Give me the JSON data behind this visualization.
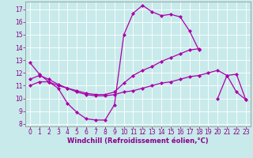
{
  "background_color": "#c8eaea",
  "grid_color": "#ffffff",
  "line_color": "#aa00aa",
  "marker": "D",
  "markersize": 2.0,
  "linewidth": 0.9,
  "xlabel": "Windchill (Refroidissement éolien,°C)",
  "xlabel_fontsize": 6.0,
  "tick_fontsize": 5.5,
  "xlim": [
    -0.5,
    23.5
  ],
  "ylim": [
    7.8,
    17.6
  ],
  "yticks": [
    8,
    9,
    10,
    11,
    12,
    13,
    14,
    15,
    16,
    17
  ],
  "xticks": [
    0,
    1,
    2,
    3,
    4,
    5,
    6,
    7,
    8,
    9,
    10,
    11,
    12,
    13,
    14,
    15,
    16,
    17,
    18,
    19,
    20,
    21,
    22,
    23
  ],
  "series": [
    {
      "x": [
        0,
        1,
        2,
        3,
        4,
        5,
        6,
        7,
        8,
        9,
        10,
        11,
        12,
        13,
        14,
        15,
        16,
        17,
        18
      ],
      "y": [
        12.8,
        11.9,
        11.3,
        10.8,
        9.6,
        8.9,
        8.4,
        8.3,
        8.3,
        9.5,
        15.0,
        16.7,
        17.3,
        16.8,
        16.5,
        16.6,
        16.4,
        15.3,
        13.8
      ]
    },
    {
      "x": [
        0,
        1,
        2,
        3,
        4,
        5,
        6,
        7,
        8,
        9,
        10,
        11,
        12,
        13,
        14,
        15,
        16,
        17,
        18,
        19,
        20,
        21,
        22,
        23
      ],
      "y": [
        11.0,
        11.3,
        11.3,
        11.0,
        10.8,
        10.5,
        10.3,
        10.2,
        10.2,
        10.3,
        10.5,
        10.6,
        10.8,
        11.0,
        11.2,
        11.3,
        11.5,
        11.7,
        11.8,
        12.0,
        12.2,
        11.8,
        11.9,
        9.9
      ]
    },
    {
      "x": [
        0,
        1,
        2,
        3,
        4,
        5,
        6,
        7,
        8,
        9,
        10,
        11,
        12,
        13,
        14,
        15,
        16,
        17,
        18
      ],
      "y": [
        11.5,
        11.8,
        11.5,
        11.1,
        10.8,
        10.6,
        10.4,
        10.3,
        10.3,
        10.5,
        11.2,
        11.8,
        12.2,
        12.5,
        12.9,
        13.2,
        13.5,
        13.8,
        13.9
      ]
    },
    {
      "x": [
        20,
        21,
        22,
        23
      ],
      "y": [
        10.0,
        11.8,
        10.5,
        9.9
      ]
    }
  ]
}
